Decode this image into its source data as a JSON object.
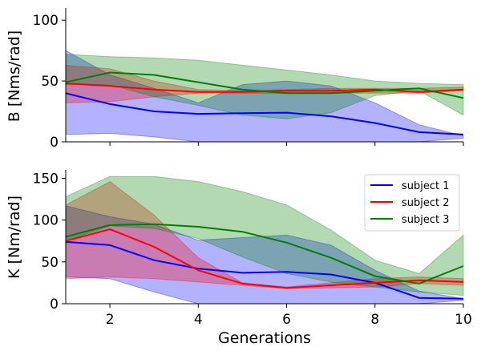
{
  "chart_data": [
    {
      "type": "line",
      "ylabel": "B [Nms/rad]",
      "xlabel": "",
      "xlim": [
        1,
        10
      ],
      "ylim": [
        0,
        110
      ],
      "yticks": [
        0,
        50,
        100
      ],
      "x": [
        1,
        2,
        3,
        4,
        5,
        6,
        7,
        8,
        9,
        10
      ],
      "series": [
        {
          "name": "subject 1",
          "color": "#0000ff",
          "values": [
            40,
            31,
            25,
            23,
            23.5,
            24,
            21,
            15.5,
            8,
            6
          ],
          "lower": [
            6,
            7,
            4,
            0,
            0,
            0,
            0,
            0,
            0,
            3
          ],
          "upper": [
            75,
            55,
            44,
            32,
            47,
            50,
            46,
            32,
            14,
            5
          ]
        },
        {
          "name": "subject 2",
          "color": "#ff0000",
          "values": [
            48,
            46,
            43,
            41,
            41,
            42,
            42,
            43,
            41,
            43
          ],
          "lower": [
            32,
            33,
            37,
            40,
            40,
            40,
            40,
            40,
            40,
            42
          ],
          "upper": [
            63,
            60,
            50,
            43,
            42,
            43,
            44,
            44,
            44,
            45
          ]
        },
        {
          "name": "subject 3",
          "color": "#008000",
          "values": [
            49,
            57,
            55,
            49,
            43,
            40,
            40,
            42,
            44,
            36
          ],
          "lower": [
            47,
            47,
            37,
            30,
            22,
            19,
            24,
            38,
            42,
            22
          ],
          "upper": [
            72,
            70,
            69,
            67,
            63,
            59,
            55,
            50,
            48,
            47
          ]
        }
      ]
    },
    {
      "type": "line",
      "ylabel": "K [Nm/rad]",
      "xlabel": "Generations",
      "xlim": [
        1,
        10
      ],
      "ylim": [
        0,
        160
      ],
      "yticks": [
        0,
        50,
        100,
        150
      ],
      "xticks": [
        2,
        4,
        6,
        8,
        10
      ],
      "x": [
        1,
        2,
        3,
        4,
        5,
        6,
        7,
        8,
        9,
        10
      ],
      "series": [
        {
          "name": "subject 1",
          "color": "#0000ff",
          "values": [
            74,
            70,
            52,
            42,
            37,
            38,
            35,
            25,
            7,
            6
          ],
          "lower": [
            32,
            30,
            14,
            0,
            0,
            0,
            0,
            0,
            0,
            4
          ],
          "upper": [
            117,
            104,
            95,
            76,
            79,
            82,
            70,
            40,
            15,
            6
          ]
        },
        {
          "name": "subject 2",
          "color": "#ff0000",
          "values": [
            75,
            89,
            68,
            40,
            24,
            19,
            22,
            25,
            28,
            26
          ],
          "lower": [
            30,
            32,
            30,
            26,
            22,
            18,
            19,
            20,
            24,
            22
          ],
          "upper": [
            118,
            146,
            106,
            55,
            25,
            20,
            25,
            30,
            32,
            30
          ]
        },
        {
          "name": "subject 3",
          "color": "#008000",
          "values": [
            80,
            94,
            95,
            92,
            86,
            73,
            55,
            33,
            24,
            45
          ],
          "lower": [
            75,
            93,
            90,
            78,
            56,
            36,
            26,
            20,
            14,
            10
          ],
          "upper": [
            128,
            152,
            152,
            146,
            134,
            118,
            88,
            52,
            36,
            82
          ]
        }
      ],
      "legend": {
        "position": "top-right",
        "entries": [
          "subject 1",
          "subject 2",
          "subject 3"
        ]
      }
    }
  ]
}
